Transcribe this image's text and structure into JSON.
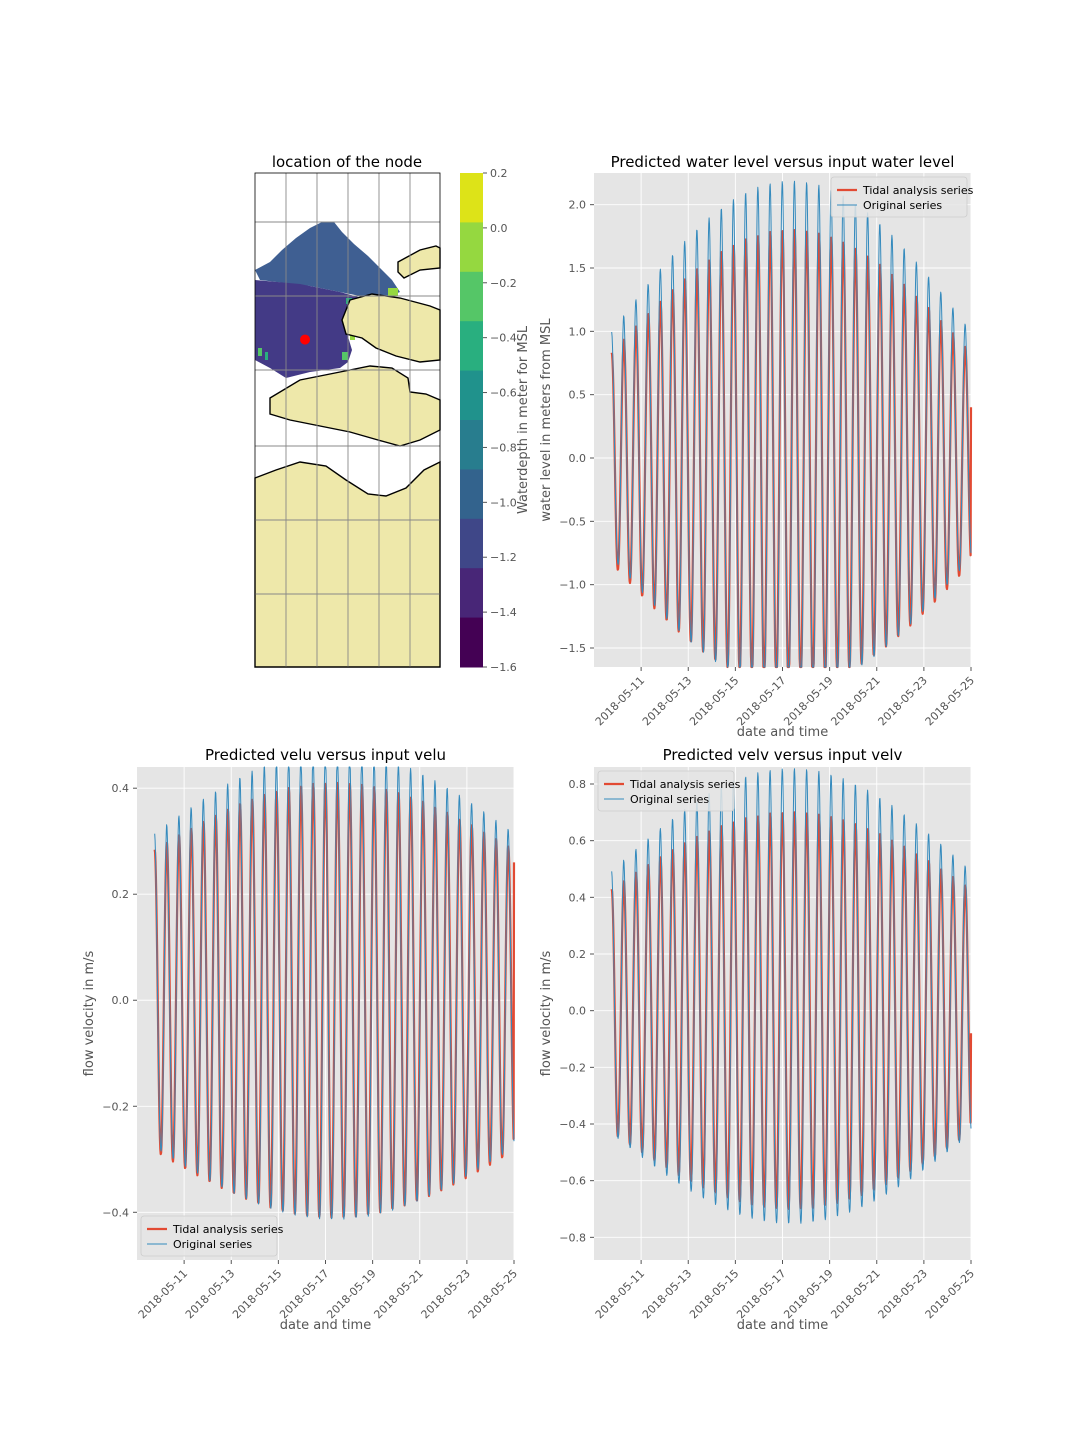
{
  "colors": {
    "tidal": "#E24A33",
    "original": "#348ABD",
    "panel_bg": "#E5E5E5",
    "grid": "#FFFFFF",
    "land": "#EEE8AA",
    "marker": "#FF0000"
  },
  "legend": {
    "tidal_label": "Tidal analysis series",
    "original_label": "Original series"
  },
  "map": {
    "title": "location of the node",
    "colorbar_label": "Waterdepth in meter for MSL",
    "colorbar_ticks": [
      "0.2",
      "0.0",
      "−0.2",
      "−0.4",
      "−0.6",
      "−0.8",
      "−1.0",
      "−1.2",
      "−1.4",
      "−1.6"
    ],
    "colorbar_values": [
      0.2,
      0.0,
      -0.2,
      -0.4,
      -0.6,
      -0.8,
      -1.0,
      -1.2,
      -1.4,
      -1.6
    ],
    "colorbar_colors": [
      "#DDE318",
      "#95D840",
      "#55C667",
      "#29AF7F",
      "#20928C",
      "#287D8E",
      "#33638D",
      "#3F4788",
      "#482677",
      "#440154"
    ]
  },
  "chart_data": [
    {
      "id": "water_level",
      "type": "line",
      "title": "Predicted water level versus input water level",
      "xlabel": "date and time",
      "ylabel": "water level in meters from MSL",
      "xlim": [
        "2018-05-09",
        "2018-05-25"
      ],
      "ylim": [
        -1.65,
        2.25
      ],
      "yticks": [
        2.0,
        1.5,
        1.0,
        0.5,
        0.0,
        -0.5,
        -1.0,
        -1.5
      ],
      "ytick_labels": [
        "2.0",
        "1.5",
        "1.0",
        "0.5",
        "0.0",
        "−0.5",
        "−1.0",
        "−1.5"
      ],
      "xtick_labels": [
        "2018-05-11",
        "2018-05-13",
        "2018-05-15",
        "2018-05-17",
        "2018-05-19",
        "2018-05-21",
        "2018-05-23",
        "2018-05-25"
      ],
      "legend_position": "top-right",
      "series": [
        {
          "name": "Tidal analysis series",
          "start": "2018-05-09T18:00",
          "end": "2018-05-25T00:00",
          "mean": 0.0,
          "amplitude_range": [
            0.8,
            1.8
          ],
          "period_hours": 12.42,
          "end_value": 0.4
        },
        {
          "name": "Original series",
          "start": "2018-05-09T18:00",
          "end": "2018-05-25T00:00",
          "mean": 0.05,
          "amplitude_range": [
            0.85,
            2.0
          ],
          "period_hours": 12.42,
          "high_peak": 2.2,
          "low_trough": -1.62
        }
      ]
    },
    {
      "id": "velu",
      "type": "line",
      "title": "Predicted velu versus input velu",
      "xlabel": "date and time",
      "ylabel": "flow velocity in m/s",
      "xlim": [
        "2018-05-09",
        "2018-05-25"
      ],
      "ylim": [
        -0.49,
        0.44
      ],
      "yticks": [
        0.4,
        0.2,
        0.0,
        -0.2,
        -0.4
      ],
      "ytick_labels": [
        "0.4",
        "0.2",
        "0.0",
        "−0.2",
        "−0.4"
      ],
      "xtick_labels": [
        "2018-05-11",
        "2018-05-13",
        "2018-05-15",
        "2018-05-17",
        "2018-05-19",
        "2018-05-21",
        "2018-05-23",
        "2018-05-25"
      ],
      "legend_position": "bottom-left",
      "series": [
        {
          "name": "Tidal analysis series",
          "start": "2018-05-09T18:00",
          "end": "2018-05-25T00:00",
          "mean": 0.0,
          "amplitude_range": [
            0.28,
            0.41
          ],
          "period_hours": 12.42,
          "end_value": 0.26
        },
        {
          "name": "Original series",
          "start": "2018-05-09T18:00",
          "end": "2018-05-25T00:00",
          "mean": 0.0,
          "amplitude_range": [
            0.29,
            0.44
          ],
          "period_hours": 12.42
        }
      ]
    },
    {
      "id": "velv",
      "type": "line",
      "title": "Predicted velv versus input velv",
      "xlabel": "date and time",
      "ylabel": "flow velocity in m/s",
      "xlim": [
        "2018-05-09",
        "2018-05-25"
      ],
      "ylim": [
        -0.88,
        0.86
      ],
      "yticks": [
        0.8,
        0.6,
        0.4,
        0.2,
        0.0,
        -0.2,
        -0.4,
        -0.6,
        -0.8
      ],
      "ytick_labels": [
        "0.8",
        "0.6",
        "0.4",
        "0.2",
        "0.0",
        "−0.2",
        "−0.4",
        "−0.6",
        "−0.8"
      ],
      "xtick_labels": [
        "2018-05-11",
        "2018-05-13",
        "2018-05-15",
        "2018-05-17",
        "2018-05-19",
        "2018-05-21",
        "2018-05-23",
        "2018-05-25"
      ],
      "legend_position": "top-left",
      "series": [
        {
          "name": "Tidal analysis series",
          "start": "2018-05-09T18:00",
          "end": "2018-05-25T00:00",
          "mean": 0.0,
          "amplitude_range": [
            0.42,
            0.7
          ],
          "period_hours": 12.42,
          "end_value": -0.08
        },
        {
          "name": "Original series",
          "start": "2018-05-09T18:00",
          "end": "2018-05-25T00:00",
          "mean": 0.0,
          "amplitude_range": [
            0.45,
            0.8
          ],
          "period_hours": 12.42
        }
      ]
    }
  ]
}
